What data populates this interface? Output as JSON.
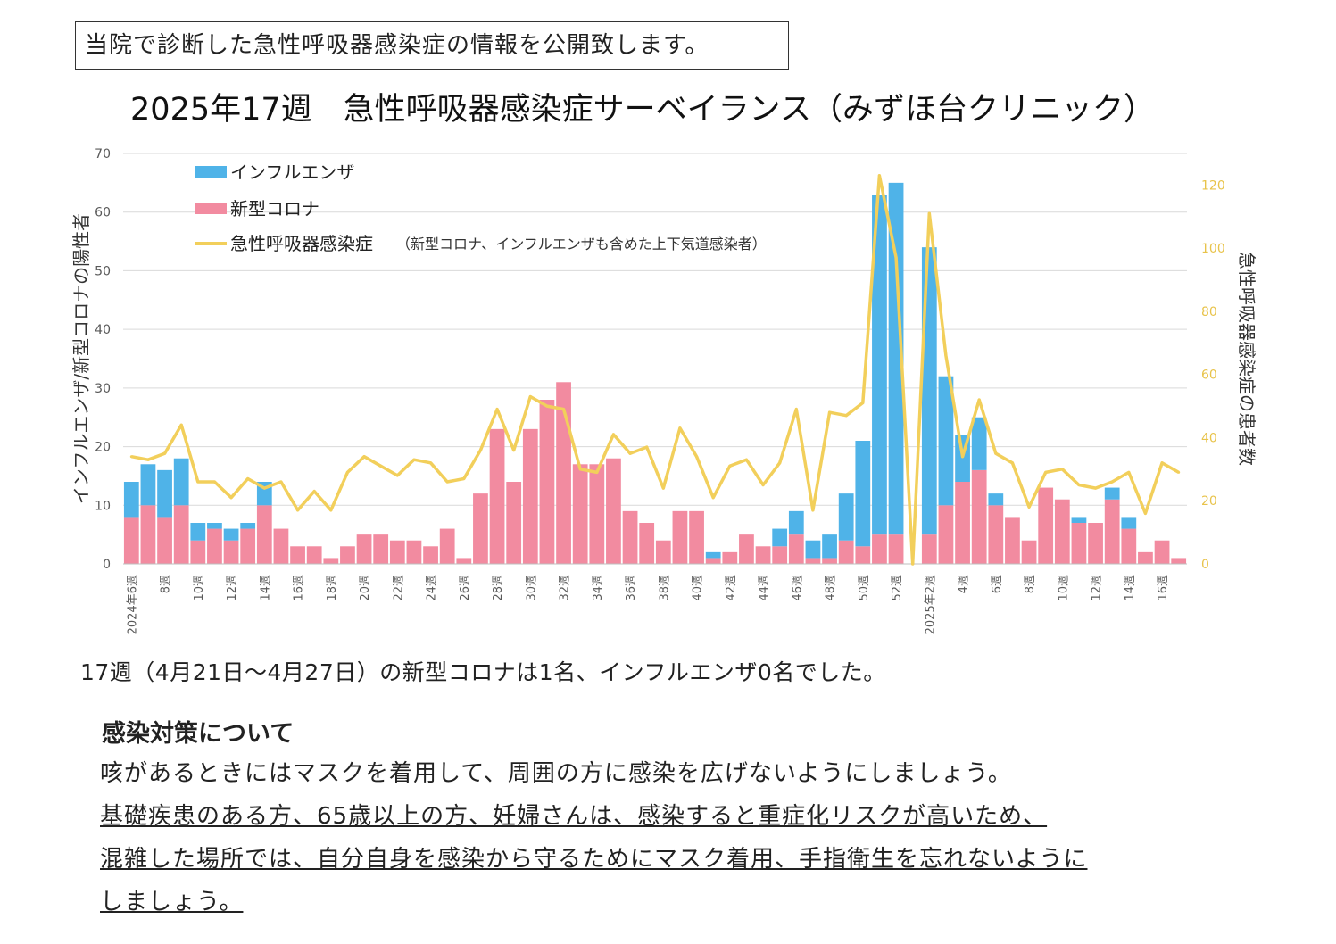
{
  "notice": "当院で診断した急性呼吸器感染症の情報を公開致します。",
  "title": "2025年17週　急性呼吸器感染症サーベイランス（みずほ台クリニック）",
  "summary": "17週（4月21日～4月27日）の新型コロナは1名、インフルエンザ0名でした。",
  "measures": {
    "heading": "感染対策について",
    "line1": "咳があるときにはマスクを着用して、周囲の方に感染を広げないようにしましょう。",
    "line2": "基礎疾患のある方、65歳以上の方、妊婦さんは、感染すると重症化リスクが高いため、",
    "line3": "混雑した場所では、自分自身を感染から守るためにマスク着用、手指衛生を忘れないように",
    "line4": "しましょう。"
  },
  "colors": {
    "flu": "#4FB3E8",
    "covid": "#F28BA0",
    "ari": "#F2CF5B",
    "grid": "#D9D9D9"
  },
  "chart_data": {
    "type": "bar",
    "stacked": true,
    "ylabel": "インフルエンザ/新型コロナの陽性者",
    "y2label": "急性呼吸器感染症の患者数",
    "ylim": [
      0,
      70
    ],
    "yticks": [
      0,
      10,
      20,
      30,
      40,
      50,
      60,
      70
    ],
    "y2lim": [
      0,
      130
    ],
    "y2ticks": [
      0,
      20,
      40,
      60,
      80,
      100,
      120
    ],
    "grid": true,
    "legend_position": "top-left",
    "legend": {
      "flu": "インフルエンザ",
      "covid": "新型コロナ",
      "ari": "急性呼吸器感染症",
      "ari_note": "（新型コロナ、インフルエンザも含めた上下気道感染者）"
    },
    "x_tick_labels": [
      "2024年6週",
      "",
      "8週",
      "",
      "10週",
      "",
      "12週",
      "",
      "14週",
      "",
      "16週",
      "",
      "18週",
      "",
      "20週",
      "",
      "22週",
      "",
      "24週",
      "",
      "26週",
      "",
      "28週",
      "",
      "30週",
      "",
      "32週",
      "",
      "34週",
      "",
      "36週",
      "",
      "38週",
      "",
      "40週",
      "",
      "42週",
      "",
      "44週",
      "",
      "46週",
      "",
      "48週",
      "",
      "50週",
      "",
      "52週",
      "",
      "2025年2週",
      "",
      "4週",
      "",
      "6週",
      "",
      "8週",
      "",
      "10週",
      "",
      "12週",
      "",
      "14週",
      "",
      "16週",
      ""
    ],
    "covid": [
      8,
      10,
      8,
      10,
      4,
      6,
      4,
      6,
      10,
      6,
      3,
      3,
      1,
      3,
      5,
      5,
      4,
      4,
      3,
      6,
      1,
      12,
      23,
      14,
      23,
      28,
      31,
      17,
      17,
      18,
      9,
      7,
      4,
      9,
      9,
      1,
      2,
      5,
      3,
      3,
      5,
      1,
      1,
      4,
      3,
      5,
      5,
      0,
      5,
      10,
      14,
      16,
      10,
      8,
      4,
      13,
      11,
      7,
      7,
      11,
      6,
      2,
      4,
      1
    ],
    "flu": [
      6,
      7,
      8,
      8,
      3,
      1,
      2,
      1,
      4,
      0,
      0,
      0,
      0,
      0,
      0,
      0,
      0,
      0,
      0,
      0,
      0,
      0,
      0,
      0,
      0,
      0,
      0,
      0,
      0,
      0,
      0,
      0,
      0,
      0,
      0,
      1,
      0,
      0,
      0,
      3,
      4,
      3,
      4,
      8,
      18,
      58,
      60,
      0,
      49,
      22,
      8,
      9,
      2,
      0,
      0,
      0,
      0,
      1,
      0,
      2,
      2,
      0,
      0,
      0
    ],
    "ari": [
      34,
      33,
      35,
      44,
      26,
      26,
      21,
      27,
      24,
      26,
      17,
      23,
      17,
      29,
      34,
      31,
      28,
      33,
      32,
      26,
      27,
      36,
      49,
      36,
      53,
      50,
      49,
      30,
      29,
      41,
      35,
      37,
      24,
      43,
      34,
      21,
      31,
      33,
      25,
      32,
      49,
      17,
      48,
      47,
      51,
      123,
      97,
      0,
      111,
      66,
      34,
      52,
      35,
      32,
      18,
      29,
      30,
      25,
      24,
      26,
      29,
      16,
      32,
      29
    ]
  }
}
